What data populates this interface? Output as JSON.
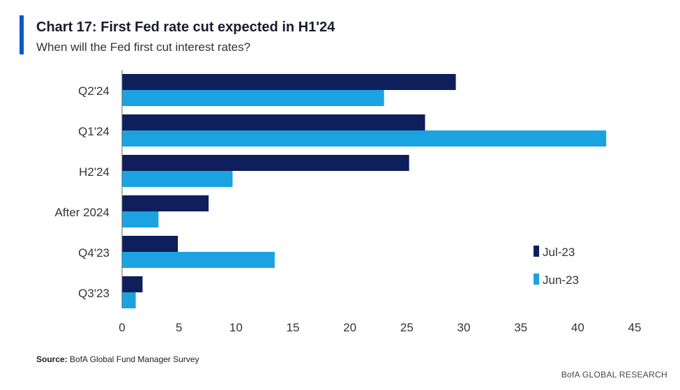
{
  "chart_data": {
    "type": "bar",
    "orientation": "horizontal",
    "title": "Chart 17: First Fed rate cut expected in H1'24",
    "subtitle": "When will the Fed first cut interest rates?",
    "categories": [
      "Q2'24",
      "Q1'24",
      "H2'24",
      "After 2024",
      "Q4'23",
      "Q3'23"
    ],
    "series": [
      {
        "name": "Jul-23",
        "color": "#0f1f5c",
        "values": [
          29.3,
          26.6,
          25.2,
          7.6,
          4.9,
          1.8
        ]
      },
      {
        "name": "Jun-23",
        "color": "#1aa3e0",
        "values": [
          23.0,
          42.5,
          9.7,
          3.2,
          13.4,
          1.2
        ]
      }
    ],
    "xlim": [
      0,
      45
    ],
    "xticks": [
      "0",
      "5",
      "10",
      "15",
      "20",
      "25",
      "30",
      "35",
      "40",
      "45"
    ],
    "xlabel": "",
    "ylabel": "",
    "grid": false,
    "legend_position": "bottom-right"
  },
  "footer": {
    "source_label": "Source:",
    "source_text": "BofA Global Fund Manager Survey",
    "brand": "BofA GLOBAL RESEARCH"
  }
}
